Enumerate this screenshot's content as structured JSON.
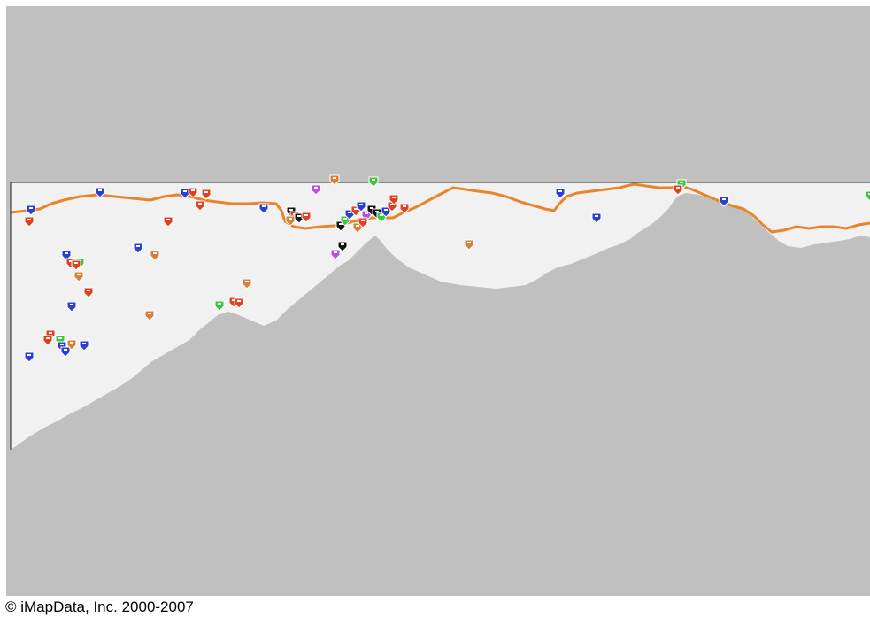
{
  "map": {
    "colors": {
      "water": "#c0c0c0",
      "land": "#f1f1f1",
      "road": "#e8852a",
      "border": "#202020"
    },
    "marker_colors": {
      "blue": "#2a3fd6",
      "red": "#e0401f",
      "orange": "#d8803a",
      "green": "#36c93b",
      "purple": "#b94ee0",
      "black": "#111111"
    }
  },
  "copyright": {
    "text": "© iMapData, Inc. 2000-2007"
  }
}
